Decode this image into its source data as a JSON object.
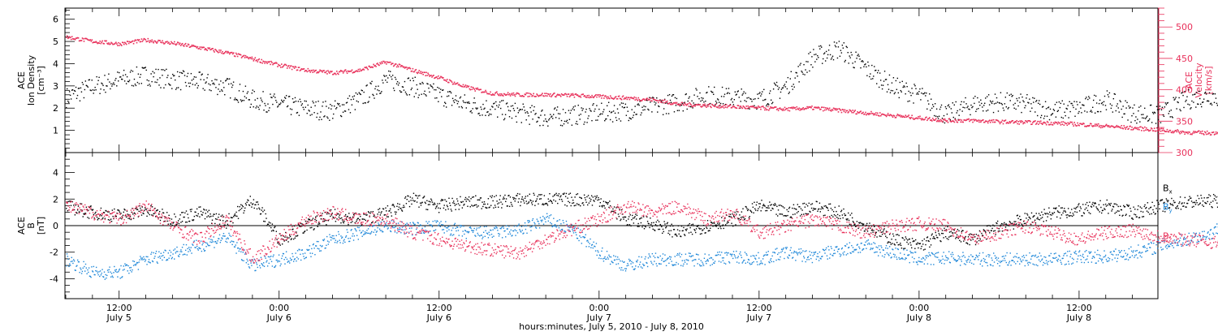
{
  "chart_data": [
    {
      "type": "scatter",
      "panel": "top",
      "ylabel": [
        "ACE",
        "Ion Density",
        "[cm⁻³]"
      ],
      "y2label": [
        "ACE",
        "Velocity",
        "[km/s]"
      ],
      "ylim": [
        0,
        6.5
      ],
      "y2lim": [
        300,
        530
      ],
      "yticks": [
        1,
        2,
        3,
        4,
        5,
        6
      ],
      "y2ticks": [
        300,
        350,
        400,
        450,
        500
      ],
      "colors": {
        "density": "#000000",
        "velocity": "#e8305a"
      },
      "series": [
        {
          "name": "",
          "axis": "left",
          "color": "#000000",
          "x_hours": [
            0,
            2,
            4,
            6,
            8,
            10,
            12,
            14,
            16,
            18,
            20,
            22,
            24,
            26,
            28,
            30,
            32,
            34,
            36,
            38,
            40,
            42,
            44,
            46,
            48,
            50,
            52,
            54,
            56,
            58,
            60,
            62,
            64,
            66,
            68,
            70,
            72,
            74,
            76,
            78,
            80,
            82,
            84,
            86,
            87
          ],
          "values": [
            2.5,
            3.0,
            3.3,
            3.5,
            3.3,
            3.2,
            3.0,
            2.4,
            2.2,
            2.0,
            1.9,
            2.4,
            3.3,
            3.0,
            2.6,
            2.2,
            2.0,
            1.8,
            1.6,
            1.7,
            1.8,
            1.9,
            2.1,
            2.3,
            2.6,
            2.5,
            2.4,
            3.0,
            4.3,
            4.7,
            3.8,
            3.0,
            2.6,
            1.7,
            2.2,
            2.3,
            2.2,
            1.9,
            2.0,
            2.4,
            1.8,
            1.7,
            2.4,
            2.6,
            2.3
          ]
        },
        {
          "name": "",
          "axis": "right",
          "color": "#e8305a",
          "x_hours": [
            0,
            2,
            4,
            6,
            8,
            10,
            12,
            14,
            16,
            18,
            20,
            22,
            24,
            26,
            28,
            30,
            32,
            34,
            36,
            38,
            40,
            42,
            44,
            46,
            48,
            50,
            52,
            54,
            56,
            58,
            60,
            62,
            64,
            66,
            68,
            70,
            72,
            74,
            76,
            78,
            80,
            82,
            84,
            86,
            87
          ],
          "values": [
            485,
            478,
            474,
            480,
            475,
            468,
            460,
            450,
            440,
            432,
            428,
            432,
            445,
            432,
            420,
            405,
            395,
            393,
            393,
            392,
            390,
            388,
            385,
            378,
            376,
            374,
            372,
            370,
            372,
            368,
            364,
            360,
            356,
            352,
            352,
            350,
            349,
            348,
            346,
            343,
            340,
            337,
            333,
            332,
            336
          ]
        }
      ]
    },
    {
      "type": "scatter",
      "panel": "bottom",
      "ylabel": [
        "ACE",
        "B",
        "[nT]"
      ],
      "ylim": [
        -5.5,
        5.5
      ],
      "yticks": [
        -4,
        -2,
        0,
        2,
        4
      ],
      "xticks_hours": [
        4,
        16,
        28,
        40,
        52,
        64,
        76
      ],
      "xtick_labels": [
        [
          "12:00",
          "July  5"
        ],
        [
          "0:00",
          "July  6"
        ],
        [
          "12:00",
          "July  6"
        ],
        [
          "0:00",
          "July  7"
        ],
        [
          "12:00",
          "July  7"
        ],
        [
          "0:00",
          "July  8"
        ],
        [
          "12:00",
          "July  8"
        ]
      ],
      "xlabel": "hours:minutes, July  5, 2010 - July  8, 2010",
      "xlim": [
        0,
        82
      ],
      "legend": [
        "Bx",
        "By",
        "Bz"
      ],
      "legend_placement": "right",
      "colors": {
        "Bx": "#000000",
        "By": "#1c86d8",
        "Bz": "#e8305a"
      },
      "series": [
        {
          "name": "Bx",
          "color": "#000000",
          "x_hours": [
            0,
            2,
            4,
            6,
            8,
            10,
            12,
            14,
            16,
            18,
            20,
            22,
            24,
            26,
            28,
            30,
            32,
            34,
            36,
            38,
            40,
            42,
            44,
            46,
            48,
            50,
            52,
            54,
            56,
            58,
            60,
            62,
            64,
            66,
            68,
            70,
            72,
            74,
            76,
            78,
            80,
            82,
            84,
            86,
            87
          ],
          "values": [
            1.5,
            1.0,
            0.8,
            1.2,
            0.5,
            1.0,
            0.3,
            2.0,
            -1.0,
            0.0,
            0.8,
            0.5,
            1.0,
            2.0,
            1.5,
            1.8,
            1.8,
            2.0,
            2.0,
            2.0,
            2.0,
            0.5,
            0.2,
            -0.5,
            0.0,
            0.5,
            1.5,
            1.0,
            1.5,
            1.0,
            0.0,
            -1.0,
            -1.5,
            -0.5,
            -1.0,
            0.0,
            0.5,
            1.0,
            1.2,
            1.5,
            1.0,
            1.5,
            1.8,
            1.9,
            1.9
          ]
        },
        {
          "name": "By",
          "color": "#1c86d8",
          "x_hours": [
            0,
            2,
            4,
            6,
            8,
            10,
            12,
            14,
            16,
            18,
            20,
            22,
            24,
            26,
            28,
            30,
            32,
            34,
            36,
            38,
            40,
            42,
            44,
            46,
            48,
            50,
            52,
            54,
            56,
            58,
            60,
            62,
            64,
            66,
            68,
            70,
            72,
            74,
            76,
            78,
            80,
            82,
            84,
            86,
            87
          ],
          "values": [
            -2.5,
            -3.5,
            -3.5,
            -2.5,
            -2.0,
            -1.5,
            -0.8,
            -3.0,
            -2.5,
            -2.0,
            -1.0,
            -0.5,
            0.0,
            -0.2,
            0.0,
            -0.5,
            -0.5,
            -0.3,
            0.5,
            -0.3,
            -2.0,
            -3.0,
            -2.5,
            -2.5,
            -2.5,
            -2.3,
            -2.5,
            -2.0,
            -2.3,
            -1.8,
            -1.5,
            -2.0,
            -2.5,
            -2.4,
            -2.5,
            -2.5,
            -2.5,
            -2.5,
            -2.3,
            -2.3,
            -2.0,
            -1.5,
            -1.0,
            -0.5,
            0.3
          ]
        },
        {
          "name": "Bz",
          "color": "#e8305a",
          "x_hours": [
            0,
            2,
            4,
            6,
            8,
            10,
            12,
            14,
            16,
            18,
            20,
            22,
            24,
            26,
            28,
            30,
            32,
            34,
            36,
            38,
            40,
            42,
            44,
            46,
            48,
            50,
            52,
            54,
            56,
            58,
            60,
            62,
            64,
            66,
            68,
            70,
            72,
            74,
            76,
            78,
            80,
            82,
            84,
            86,
            87
          ],
          "values": [
            1.5,
            1.0,
            0.5,
            1.5,
            0.0,
            -1.0,
            0.5,
            -2.5,
            -1.0,
            0.5,
            1.0,
            0.5,
            0.5,
            -0.5,
            -1.0,
            -1.5,
            -1.8,
            -2.0,
            -1.0,
            -0.2,
            0.5,
            1.5,
            1.0,
            1.5,
            0.5,
            1.0,
            -0.5,
            0.0,
            0.5,
            0.0,
            -0.5,
            0.0,
            0.2,
            0.0,
            -1.0,
            -0.5,
            0.0,
            -0.5,
            -1.0,
            -0.5,
            -0.3,
            -0.8,
            -1.0,
            -1.2,
            -1.4
          ]
        }
      ]
    }
  ]
}
